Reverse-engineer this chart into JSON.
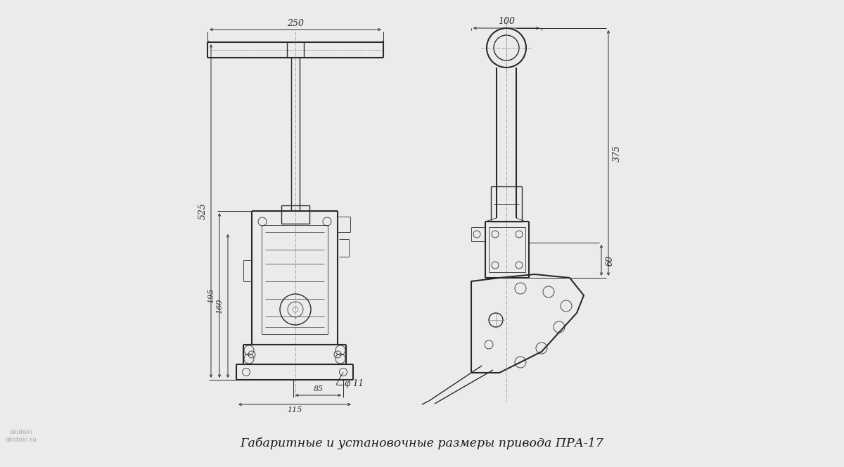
{
  "title": "Габаритные и установочные размеры привода ПРА-17",
  "background_color": "#ebebeb",
  "line_color": "#2a2a2a",
  "dim_color": "#2a2a2a",
  "centerline_color": "#888888",
  "fig_width": 12.0,
  "fig_height": 6.64,
  "dpi": 100,
  "dim_250": "250",
  "dim_100": "100",
  "dim_525": "525",
  "dim_195": "195",
  "dim_160": "160",
  "dim_phi11": "φ 11",
  "dim_85": "85",
  "dim_115": "115",
  "dim_375": "375",
  "dim_60": "60",
  "watermark_line1": "okidoki",
  "watermark_line2": "okidoki.ru"
}
